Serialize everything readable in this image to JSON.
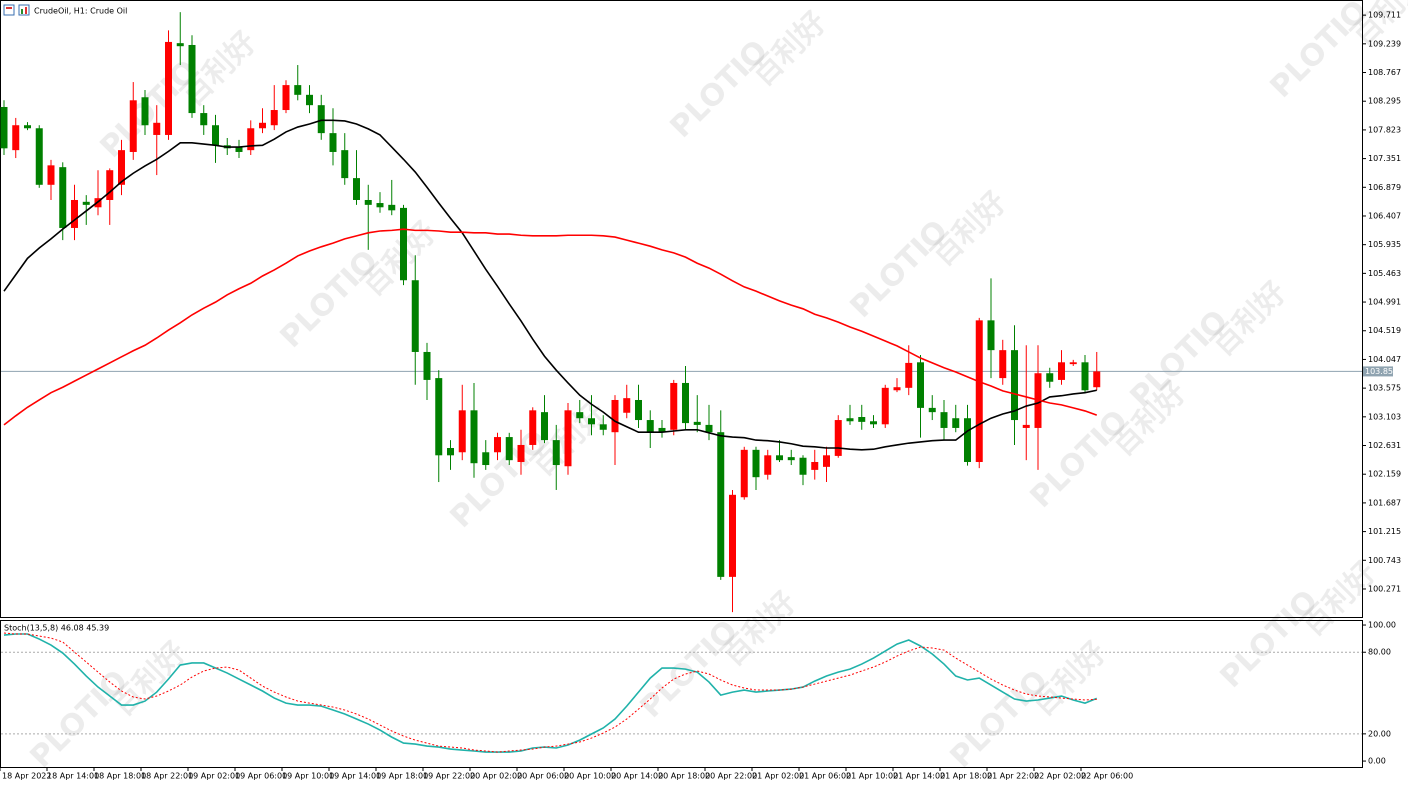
{
  "chart_data": [
    {
      "type": "candlestick",
      "title": "CrudeOil, H1: Crude Oil",
      "categories": [
        "18 Apr 2022",
        null,
        null,
        null,
        "18 Apr 14:00",
        null,
        null,
        null,
        "18 Apr 18:00",
        null,
        null,
        null,
        "18 Apr 22:00",
        null,
        null,
        null,
        "19 Apr 02:00",
        null,
        null,
        null,
        "19 Apr 06:00",
        null,
        null,
        null,
        "19 Apr 10:00",
        null,
        null,
        null,
        "19 Apr 14:00",
        null,
        null,
        null,
        "19 Apr 18:00",
        null,
        null,
        null,
        "19 Apr 22:00",
        null,
        null,
        null,
        "20 Apr 02:00",
        null,
        null,
        null,
        "20 Apr 06:00",
        null,
        null,
        null,
        "20 Apr 10:00",
        null,
        null,
        null,
        "20 Apr 14:00",
        null,
        null,
        null,
        "20 Apr 18:00",
        null,
        null,
        null,
        "20 Apr 22:00",
        null,
        null,
        null,
        "21 Apr 02:00",
        null,
        null,
        null,
        "21 Apr 06:00",
        null,
        null,
        null,
        "21 Apr 10:00",
        null,
        null,
        null,
        "21 Apr 14:00",
        null,
        null,
        null,
        "21 Apr 18:00",
        null,
        null,
        null,
        "21 Apr 22:00",
        null,
        null,
        null,
        "22 Apr 02:00",
        null,
        null,
        null,
        "22 Apr 06:00",
        null
      ],
      "open": [
        108.2,
        107.49,
        107.9,
        107.85,
        106.92,
        107.21,
        106.21,
        106.64,
        106.55,
        106.67,
        106.92,
        107.46,
        108.36,
        107.74,
        107.74,
        109.25,
        109.22,
        108.1,
        107.9,
        107.57,
        107.54,
        107.49,
        107.85,
        107.9,
        108.15,
        108.56,
        108.4,
        108.23,
        107.77,
        107.49,
        107.03,
        106.67,
        106.62,
        106.59,
        106.54,
        105.35,
        104.17,
        103.74,
        102.59,
        102.52,
        103.21,
        102.52,
        102.52,
        102.77,
        102.36,
        102.64,
        103.18,
        102.72,
        102.29,
        103.18,
        103.08,
        102.98,
        102.85,
        103.17,
        103.38,
        103.05,
        102.92,
        102.89,
        103.66,
        103.02,
        102.97,
        102.85,
        100.47,
        101.78,
        102.56,
        102.15,
        102.47,
        102.44,
        102.43,
        102.23,
        102.28,
        102.46,
        103.08,
        103.1,
        103.03,
        102.98,
        103.54,
        103.58,
        104.0,
        103.25,
        103.18,
        103.08,
        103.08,
        102.36,
        104.69,
        103.74,
        104.2,
        102.92,
        102.92,
        103.82,
        103.71,
        103.97,
        104.0,
        103.59
      ],
      "high": [
        108.31,
        108.02,
        107.95,
        107.9,
        107.33,
        107.29,
        106.92,
        106.75,
        107.16,
        107.19,
        107.66,
        108.61,
        108.48,
        108.23,
        109.46,
        109.76,
        109.38,
        108.23,
        108.07,
        107.69,
        107.66,
        107.98,
        108.18,
        108.56,
        108.64,
        108.89,
        108.56,
        108.4,
        108.18,
        107.77,
        107.49,
        106.92,
        106.8,
        107.0,
        106.59,
        105.76,
        104.32,
        103.87,
        102.72,
        103.63,
        103.66,
        102.72,
        102.84,
        102.84,
        102.89,
        103.26,
        103.46,
        102.97,
        103.33,
        103.38,
        103.46,
        103.13,
        103.46,
        103.63,
        103.63,
        103.21,
        103.05,
        103.71,
        103.94,
        103.46,
        103.3,
        103.21,
        101.9,
        102.61,
        102.61,
        102.56,
        102.72,
        102.56,
        102.47,
        102.56,
        102.61,
        103.13,
        103.3,
        103.3,
        103.13,
        103.63,
        103.74,
        104.28,
        104.12,
        103.46,
        103.38,
        103.3,
        103.3,
        104.73,
        105.38,
        104.37,
        104.61,
        104.28,
        104.28,
        103.91,
        104.2,
        104.04,
        104.12,
        104.17
      ],
      "low": [
        107.41,
        107.36,
        107.82,
        106.87,
        106.67,
        106.01,
        106.01,
        106.26,
        106.42,
        106.26,
        106.75,
        107.33,
        107.74,
        107.08,
        107.66,
        108.89,
        108.02,
        107.74,
        107.28,
        107.41,
        107.36,
        107.41,
        107.77,
        107.82,
        108.1,
        108.31,
        108.1,
        107.66,
        107.24,
        106.92,
        106.59,
        105.85,
        106.46,
        106.42,
        105.27,
        103.63,
        103.38,
        102.03,
        102.23,
        102.39,
        102.1,
        102.23,
        102.39,
        102.31,
        102.15,
        102.56,
        102.67,
        101.9,
        102.15,
        103.0,
        102.8,
        102.8,
        102.31,
        103.08,
        102.92,
        102.59,
        102.76,
        102.8,
        102.89,
        102.85,
        102.72,
        100.42,
        99.89,
        101.74,
        101.9,
        102.07,
        102.36,
        102.31,
        101.98,
        102.07,
        102.03,
        102.43,
        102.97,
        102.89,
        102.92,
        102.92,
        103.51,
        103.46,
        102.76,
        103.05,
        102.72,
        102.85,
        102.3,
        102.26,
        103.74,
        103.63,
        102.64,
        102.39,
        102.23,
        103.58,
        103.63,
        103.94,
        103.51,
        103.54
      ],
      "close": [
        107.52,
        107.9,
        107.85,
        106.92,
        107.24,
        106.21,
        106.67,
        106.59,
        106.7,
        107.16,
        107.49,
        108.31,
        107.9,
        107.94,
        109.27,
        109.2,
        108.1,
        107.9,
        107.57,
        107.52,
        107.46,
        107.85,
        107.94,
        108.15,
        108.56,
        108.4,
        108.23,
        107.77,
        107.46,
        107.03,
        106.67,
        106.59,
        106.55,
        106.5,
        105.35,
        104.17,
        103.71,
        102.47,
        102.47,
        103.21,
        102.34,
        102.31,
        102.77,
        102.39,
        102.64,
        103.21,
        102.72,
        102.31,
        103.21,
        103.08,
        102.98,
        102.89,
        103.38,
        103.41,
        103.05,
        102.84,
        102.85,
        103.66,
        103.0,
        102.97,
        102.85,
        100.47,
        101.82,
        102.56,
        102.11,
        102.47,
        102.39,
        102.39,
        102.15,
        102.36,
        102.47,
        103.05,
        103.03,
        103.02,
        102.98,
        103.58,
        103.59,
        103.99,
        103.25,
        103.18,
        102.92,
        102.92,
        102.36,
        104.69,
        104.2,
        104.2,
        103.05,
        102.97,
        103.82,
        103.68,
        104.0,
        104.0,
        103.54,
        103.85
      ],
      "up_color": "#ff0000",
      "down_color": "#008000",
      "series": [
        {
          "color": "#000000",
          "values": [
            105.17,
            105.44,
            105.71,
            105.88,
            106.03,
            106.19,
            106.34,
            106.49,
            106.64,
            106.8,
            106.97,
            107.11,
            107.23,
            107.34,
            107.47,
            107.61,
            107.61,
            107.59,
            107.57,
            107.54,
            107.54,
            107.56,
            107.57,
            107.67,
            107.79,
            107.87,
            107.92,
            107.98,
            107.98,
            107.97,
            107.92,
            107.84,
            107.74,
            107.54,
            107.34,
            107.13,
            106.88,
            106.62,
            106.37,
            106.13,
            105.83,
            105.53,
            105.25,
            104.96,
            104.68,
            104.38,
            104.1,
            103.87,
            103.66,
            103.46,
            103.31,
            103.18,
            103.03,
            102.94,
            102.85,
            102.85,
            102.85,
            102.87,
            102.89,
            102.89,
            102.84,
            102.79,
            102.77,
            102.76,
            102.72,
            102.71,
            102.69,
            102.66,
            102.62,
            102.61,
            102.59,
            102.59,
            102.57,
            102.56,
            102.57,
            102.61,
            102.64,
            102.67,
            102.69,
            102.71,
            102.72,
            102.72,
            102.87,
            102.98,
            103.08,
            103.15,
            103.2,
            103.28,
            103.33,
            103.43,
            103.45,
            103.48,
            103.5,
            103.54
          ]
        },
        {
          "color": "#ff0000",
          "values": [
            102.97,
            103.12,
            103.26,
            103.38,
            103.5,
            103.59,
            103.69,
            103.79,
            103.89,
            103.99,
            104.09,
            104.19,
            104.28,
            104.4,
            104.53,
            104.65,
            104.78,
            104.89,
            104.99,
            105.11,
            105.21,
            105.3,
            105.42,
            105.52,
            105.63,
            105.75,
            105.83,
            105.9,
            105.96,
            106.03,
            106.08,
            106.13,
            106.16,
            106.17,
            106.19,
            106.17,
            106.17,
            106.16,
            106.14,
            106.14,
            106.13,
            106.13,
            106.11,
            106.11,
            106.09,
            106.08,
            106.08,
            106.08,
            106.09,
            106.09,
            106.09,
            106.08,
            106.06,
            106.01,
            105.96,
            105.91,
            105.85,
            105.8,
            105.73,
            105.63,
            105.55,
            105.45,
            105.34,
            105.24,
            105.17,
            105.09,
            105.01,
            104.94,
            104.88,
            104.79,
            104.73,
            104.66,
            104.58,
            104.51,
            104.43,
            104.35,
            104.27,
            104.17,
            104.07,
            103.99,
            103.91,
            103.84,
            103.76,
            103.68,
            103.61,
            103.53,
            103.48,
            103.43,
            103.38,
            103.33,
            103.3,
            103.25,
            103.2,
            103.13
          ]
        }
      ],
      "current_price": {
        "value": 103.85,
        "label": "103.850"
      },
      "ylim": [
        99.81,
        109.96
      ],
      "yticks": [
        109.711,
        109.239,
        108.767,
        108.295,
        107.823,
        107.351,
        106.879,
        106.407,
        105.935,
        105.463,
        104.991,
        104.519,
        104.047,
        103.575,
        103.103,
        102.631,
        102.159,
        101.687,
        101.215,
        100.743,
        100.271
      ]
    },
    {
      "type": "line",
      "title": "Stoch(13,5,8) 46.08 45.39",
      "series": [
        {
          "color": "#20b2aa",
          "dashed": false,
          "values": [
            92.6,
            93.4,
            93.4,
            89.7,
            85.3,
            79.4,
            71.3,
            62.5,
            54.4,
            47.8,
            41.2,
            41.2,
            44.1,
            50.7,
            60.3,
            70.6,
            72.1,
            72.1,
            68.4,
            64.7,
            60.3,
            55.9,
            51.5,
            46.3,
            42.6,
            41.2,
            41.2,
            40.4,
            37.5,
            34.6,
            30.9,
            27.2,
            22.8,
            17.6,
            13.2,
            12.5,
            11.0,
            10.3,
            8.8,
            8.1,
            7.4,
            6.6,
            6.6,
            6.6,
            7.4,
            9.6,
            10.3,
            9.6,
            11.8,
            15.4,
            19.9,
            24.3,
            30.9,
            40.4,
            50.7,
            61.0,
            68.4,
            68.4,
            67.6,
            65.4,
            58.1,
            48.5,
            50.7,
            52.2,
            50.7,
            51.5,
            52.2,
            52.9,
            54.4,
            58.8,
            62.5,
            65.4,
            67.6,
            71.3,
            75.7,
            80.9,
            86.0,
            89.0,
            84.6,
            78.7,
            71.3,
            62.5,
            59.6,
            61.0,
            55.9,
            50.7,
            45.6,
            44.1,
            44.9,
            46.3,
            47.8,
            44.9,
            42.6,
            46.08
          ]
        },
        {
          "color": "#ff0000",
          "dashed": true,
          "values": [
            94.1,
            93.4,
            93.4,
            91.9,
            90.4,
            87.5,
            80.1,
            72.8,
            65.4,
            58.1,
            51.5,
            47.1,
            45.6,
            47.8,
            51.5,
            55.9,
            61.8,
            66.2,
            68.4,
            69.1,
            66.9,
            61.0,
            55.1,
            50.7,
            47.1,
            44.1,
            42.6,
            41.2,
            39.7,
            37.5,
            34.6,
            30.9,
            26.5,
            22.1,
            18.4,
            15.4,
            13.2,
            11.0,
            10.3,
            9.6,
            8.1,
            7.4,
            6.6,
            7.4,
            8.1,
            8.8,
            10.3,
            11.0,
            12.5,
            14.0,
            16.9,
            20.6,
            25.0,
            30.9,
            38.2,
            45.6,
            53.7,
            60.3,
            64.0,
            66.2,
            64.0,
            59.6,
            55.9,
            53.7,
            52.2,
            52.2,
            52.2,
            52.9,
            54.4,
            56.6,
            58.8,
            61.0,
            63.2,
            66.2,
            69.1,
            72.8,
            77.2,
            80.9,
            83.8,
            83.1,
            81.6,
            75.7,
            70.6,
            65.4,
            60.3,
            55.9,
            52.2,
            49.3,
            47.8,
            47.1,
            46.3,
            45.6,
            44.9,
            45.39
          ]
        }
      ],
      "levels": [
        80,
        20
      ],
      "ylim": [
        -5.1,
        103.7
      ],
      "yticks": [
        {
          "value": 100,
          "label": "100.00"
        },
        {
          "value": 80,
          "label": "80.00"
        },
        {
          "value": 20,
          "label": "20.00"
        },
        {
          "value": 0,
          "label": "0.00"
        }
      ]
    }
  ],
  "watermark": {
    "brand": "PLOTIO",
    "name": "百利好"
  }
}
